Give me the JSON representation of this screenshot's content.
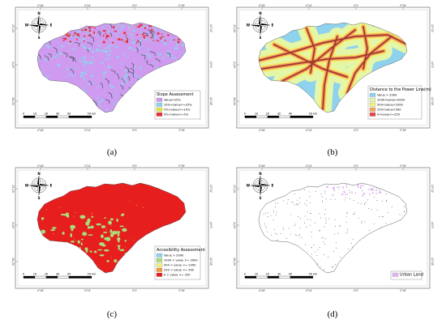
{
  "panels": [
    {
      "id": "a",
      "caption": "(a)",
      "style": "slope",
      "legend": {
        "title": "Slope Assessment",
        "items": [
          {
            "label": "Value>25%",
            "color": "#cf9bf0"
          },
          {
            "label": "10%<value<=25%",
            "color": "#8fd2ee"
          },
          {
            "label": "5%<value<=10%",
            "color": "#e6e64a"
          },
          {
            "label": "0%<value<=5%",
            "color": "#e63232"
          }
        ]
      }
    },
    {
      "id": "b",
      "caption": "(b)",
      "style": "power",
      "legend": {
        "title": "Distance to the Power Line(m)",
        "items": [
          {
            "label": "Value > 2000",
            "color": "#8fd2ee"
          },
          {
            "label": "1000<value<2000",
            "color": "#e4f6a8"
          },
          {
            "label": "500<value<1000",
            "color": "#f2f27a"
          },
          {
            "label": "250<value<500",
            "color": "#f2a75a"
          },
          {
            "label": "0<value<=250",
            "color": "#e64646"
          }
        ]
      }
    },
    {
      "id": "c",
      "caption": "(c)",
      "style": "access",
      "legend": {
        "title": "Accesibility Assessment",
        "items": [
          {
            "label": "Value > 2000",
            "color": "#8fd2ee"
          },
          {
            "label": "1000 < value <= 2000",
            "color": "#a8dd7a"
          },
          {
            "label": "500 < value <= 1000",
            "color": "#f2f27a"
          },
          {
            "label": "250 < value <= 500",
            "color": "#f29a3a"
          },
          {
            "label": "0 < value <= 250",
            "color": "#e61e1e"
          }
        ]
      }
    },
    {
      "id": "d",
      "caption": "(d)",
      "style": "urban",
      "legend": {
        "title": "",
        "items": [
          {
            "label": "Urban Land",
            "color": "#e2b6f0"
          }
        ]
      }
    }
  ],
  "scalebar": {
    "labels": [
      "0",
      "10",
      "20",
      "30",
      "40",
      "50 km"
    ]
  },
  "compass": {
    "n": "N",
    "s": "S",
    "e": "E",
    "w": "W"
  },
  "grid": {
    "top_ticks": [
      "4°48'",
      "4°24'",
      "4°0'",
      "3°36'"
    ],
    "left_ticks": [
      "43°12'",
      "43°0'",
      "42°48'"
    ]
  }
}
